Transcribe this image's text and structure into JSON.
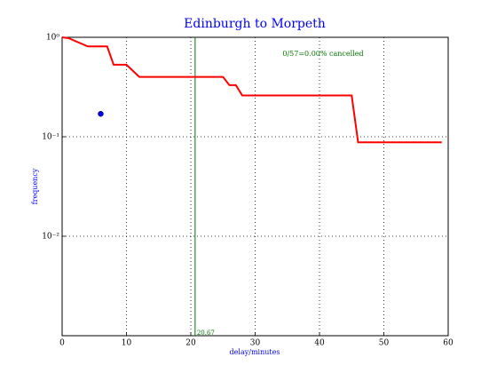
{
  "chart_data": {
    "type": "line",
    "title": "Edinburgh to Morpeth",
    "xlabel": "delay/minutes",
    "ylabel": "frequency",
    "x": [
      0,
      1,
      4,
      7,
      8,
      10,
      12,
      25,
      26,
      27,
      28,
      45,
      46,
      59
    ],
    "values": [
      1,
      0.98,
      0.81,
      0.81,
      0.53,
      0.53,
      0.4,
      0.4,
      0.33,
      0.33,
      0.26,
      0.26,
      0.088,
      0.088
    ],
    "color": "#ff0000",
    "points": {
      "x": [
        6
      ],
      "values": [
        0.17
      ],
      "color": "#0000ff"
    },
    "vline": {
      "x": 20.67,
      "color": "#007700"
    },
    "annotation": "0/57=0.00% cancelled",
    "xlim": [
      0,
      60
    ],
    "xticks": [
      0,
      10,
      20,
      30,
      40,
      50,
      60
    ],
    "ylim": [
      0.001,
      1
    ],
    "yscale": "log",
    "yticks": [
      {
        "value": 1,
        "label": "10⁰"
      },
      {
        "value": 0.1,
        "label": "10⁻¹"
      },
      {
        "value": 0.01,
        "label": "10⁻²"
      }
    ],
    "grid": true
  }
}
